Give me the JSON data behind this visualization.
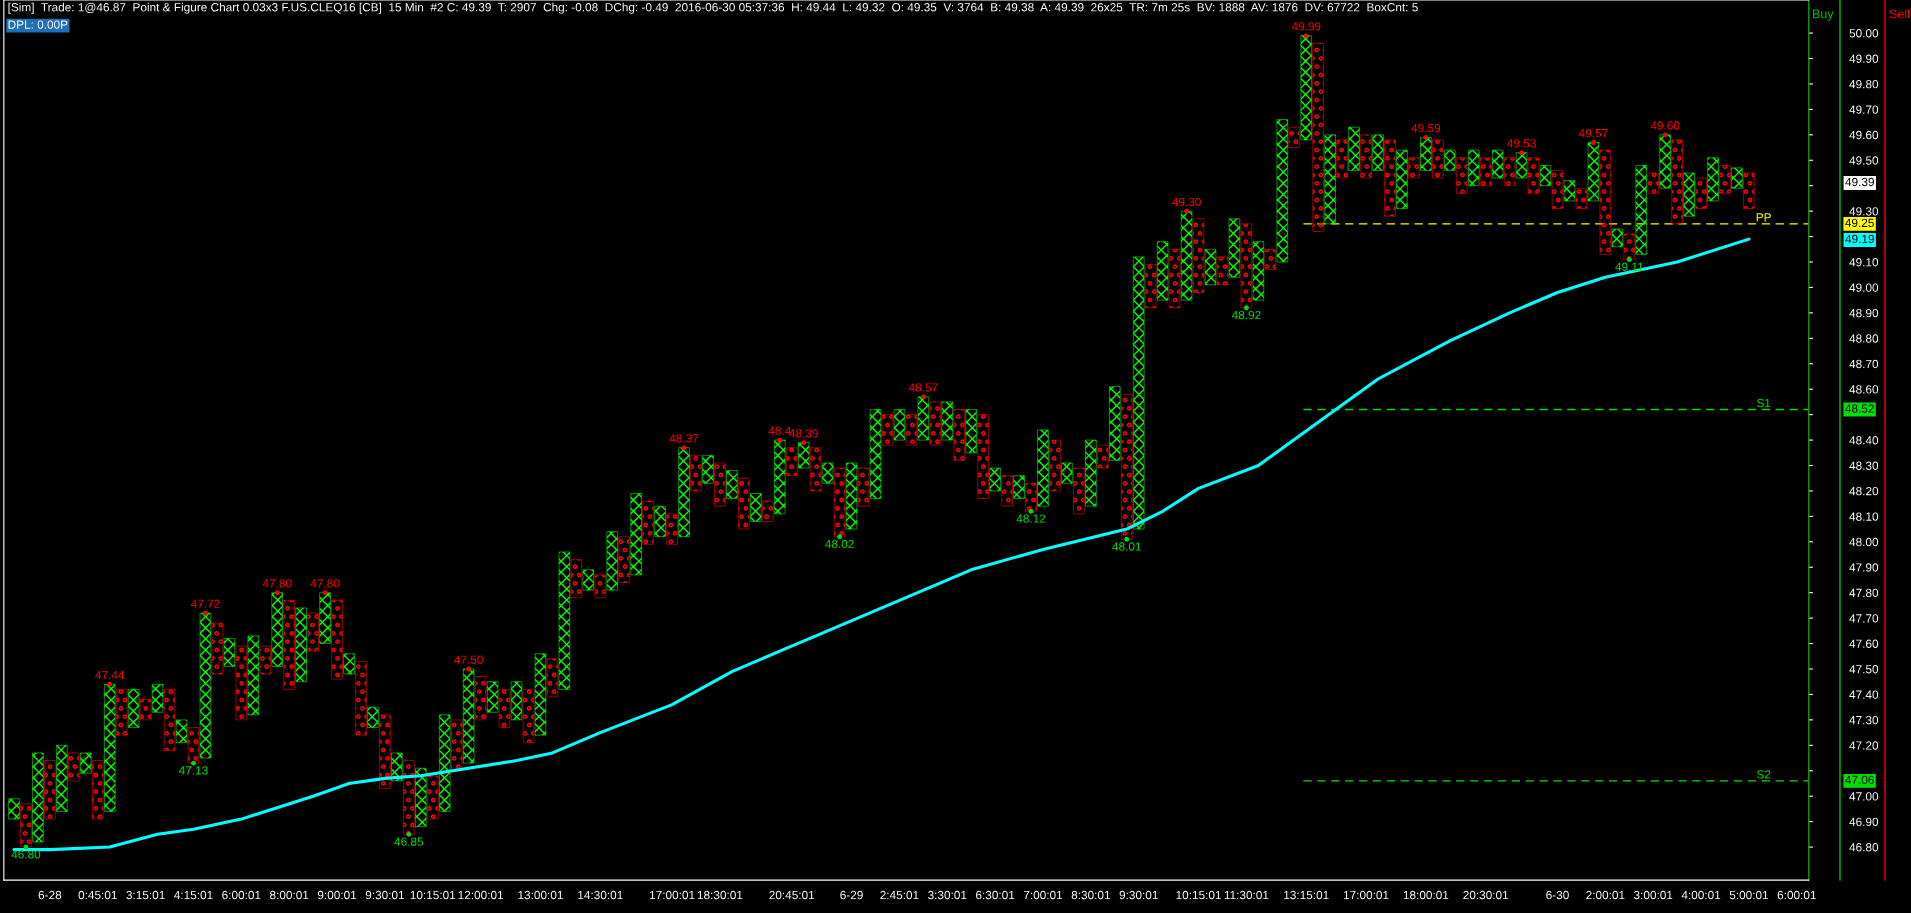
{
  "chart_data": {
    "type": "bar",
    "title": "[Sim]  Trade: 1@46.87  Point & Figure Chart 0.03x3 F.US.CLEQ16 [CB]  15 Min  #2 C: 49.39  T: 2907  Chg: -0.08  DChg: -0.49  2016-06-30 05:37:36  H: 49.44  L: 49.32  O: 49.35  V: 3764  B: 49.38  A: 49.39  26x25  TR: 7m 25s  BV: 1888  AV: 1876  DV: 67722  BoxCnt: 5",
    "subtitle": "DPL: 0.00P",
    "categories": [
      null,
      null,
      null,
      "6-28",
      null,
      null,
      null,
      "0:45:01",
      null,
      null,
      null,
      "3:15:01",
      null,
      null,
      null,
      "4:15:01",
      null,
      null,
      null,
      "6:00:01",
      null,
      null,
      null,
      "8:00:01",
      null,
      null,
      null,
      "9:00:01",
      null,
      null,
      null,
      "9:30:01",
      null,
      null,
      null,
      "10:15:01",
      null,
      null,
      null,
      "12:00:01",
      null,
      null,
      null,
      null,
      "13:00:01",
      null,
      null,
      null,
      null,
      "14:30:01",
      null,
      null,
      null,
      null,
      null,
      "17:00:01",
      null,
      null,
      null,
      "18:30:01",
      null,
      null,
      null,
      null,
      null,
      "20:45:01",
      null,
      null,
      null,
      null,
      "6-29",
      null,
      null,
      null,
      "2:45:01",
      null,
      null,
      null,
      "3:30:01",
      null,
      null,
      null,
      "6:30:01",
      null,
      null,
      null,
      "7:00:01",
      null,
      null,
      null,
      "8:30:01",
      null,
      null,
      null,
      "9:30:01",
      null,
      null,
      null,
      null,
      "10:15:01",
      null,
      null,
      null,
      "11:30:01",
      null,
      null,
      null,
      null,
      "13:15:01",
      null,
      null,
      null,
      null,
      "17:00:01",
      null,
      null,
      null,
      null,
      "18:00:01",
      null,
      null,
      null,
      null,
      "20:30:01",
      null,
      null,
      null,
      null,
      null,
      "6-30",
      null,
      null,
      null,
      "2:00:01",
      null,
      null,
      null,
      "3:00:01",
      null,
      null,
      null,
      "4:00:01",
      null,
      null,
      null,
      "5:00:01",
      null,
      null,
      null,
      "6:00:01"
    ],
    "series": [
      {
        "color": "#00ff00",
        "marker": "cross",
        "values": [
          0.08,
          null,
          0.35,
          null,
          0.26,
          null,
          0.08,
          null,
          0.5,
          null,
          0.15,
          null,
          0.11,
          null,
          0.09,
          null,
          0.57,
          null,
          0.11,
          null,
          0.31,
          null,
          0.29,
          null,
          0.29,
          null,
          0.2,
          null,
          0.08,
          null,
          0.08,
          null,
          0.11,
          null,
          0.23,
          null,
          0.38,
          null,
          0.37,
          null,
          0.12,
          null,
          0.15,
          null,
          0.32,
          null,
          0.54,
          null,
          0.08,
          null,
          0.23,
          null,
          0.32,
          null,
          0.12,
          null,
          0.35,
          null,
          0.11,
          null,
          0.11,
          null,
          0.11,
          null,
          0.29,
          null,
          0.1,
          null,
          0.08,
          null,
          0.26,
          null,
          0.35,
          null,
          0.12,
          null,
          0.17,
          null,
          0.15,
          null,
          0.17,
          null,
          0.09,
          null,
          0.09,
          null,
          0.3,
          null,
          0.08,
          null,
          0.26,
          null,
          0.29,
          null,
          1.07,
          null,
          0.23,
          null,
          0.35,
          null,
          0.14,
          null,
          0.23,
          null,
          0.23,
          null,
          0.56,
          null,
          0.41,
          null,
          0.35,
          null,
          0.17,
          null,
          0.14,
          null,
          0.23,
          null,
          0.13,
          null,
          0.08,
          null,
          0.14,
          null,
          0.11,
          null,
          0.1,
          null,
          0.08,
          null,
          0.08,
          null,
          0.23,
          null,
          0.07,
          null,
          0.35,
          null,
          0.21,
          null,
          0.17,
          null,
          0.17,
          null,
          0.08,
          null,
          null,
          null,
          null,
          null
        ],
        "base": [
          46.91,
          null,
          46.82,
          null,
          46.94,
          null,
          47.09,
          null,
          46.94,
          null,
          47.27,
          null,
          47.33,
          null,
          47.21,
          null,
          47.15,
          null,
          47.51,
          null,
          47.32,
          null,
          47.51,
          null,
          47.45,
          null,
          47.6,
          null,
          47.48,
          null,
          47.27,
          null,
          47.06,
          null,
          46.88,
          null,
          46.94,
          null,
          47.13,
          null,
          47.33,
          null,
          47.3,
          null,
          47.24,
          null,
          47.42,
          null,
          47.81,
          null,
          47.81,
          null,
          47.87,
          null,
          48.02,
          null,
          48.02,
          null,
          48.23,
          null,
          48.17,
          null,
          48.08,
          null,
          48.11,
          null,
          48.29,
          null,
          48.23,
          null,
          48.05,
          null,
          48.17,
          null,
          48.4,
          null,
          48.4,
          null,
          48.4,
          null,
          48.35,
          null,
          48.2,
          null,
          48.17,
          null,
          48.14,
          null,
          48.23,
          null,
          48.14,
          null,
          48.32,
          null,
          48.05,
          null,
          48.95,
          null,
          48.95,
          null,
          49.01,
          null,
          49.04,
          null,
          48.95,
          null,
          49.1,
          null,
          49.58,
          null,
          49.25,
          null,
          49.46,
          null,
          49.46,
          null,
          49.31,
          null,
          49.46,
          null,
          49.46,
          null,
          49.4,
          null,
          49.43,
          null,
          49.43,
          null,
          49.4,
          null,
          49.34,
          null,
          49.34,
          null,
          49.16,
          null,
          49.13,
          null,
          49.39,
          null,
          49.28,
          null,
          49.34,
          null,
          49.39,
          null,
          null,
          null,
          null,
          null
        ]
      },
      {
        "color": "#ff0000",
        "marker": "circle",
        "values": [
          null,
          0.17,
          null,
          0.23,
          null,
          0.11,
          null,
          0.23,
          null,
          0.18,
          null,
          0.08,
          null,
          0.24,
          null,
          0.14,
          null,
          0.2,
          null,
          0.29,
          null,
          0.11,
          null,
          0.35,
          null,
          0.15,
          null,
          0.31,
          null,
          0.29,
          null,
          0.29,
          null,
          0.29,
          null,
          0.17,
          null,
          0.2,
          null,
          0.17,
          null,
          0.15,
          null,
          0.21,
          null,
          0.15,
          null,
          0.15,
          null,
          0.09,
          null,
          0.18,
          null,
          0.17,
          null,
          0.12,
          null,
          0.14,
          null,
          0.17,
          null,
          0.2,
          null,
          0.08,
          null,
          0.11,
          null,
          0.17,
          null,
          0.27,
          null,
          0.15,
          null,
          0.12,
          null,
          0.12,
          null,
          0.17,
          null,
          0.2,
          null,
          0.33,
          null,
          0.12,
          null,
          0.11,
          null,
          0.2,
          null,
          0.18,
          null,
          0.09,
          null,
          0.57,
          null,
          0.17,
          null,
          0.23,
          null,
          0.29,
          null,
          0.11,
          null,
          0.33,
          null,
          0.08,
          null,
          0.08,
          null,
          0.74,
          null,
          0.15,
          null,
          0.17,
          null,
          0.3,
          null,
          0.08,
          null,
          0.15,
          null,
          0.14,
          null,
          0.11,
          null,
          0.11,
          null,
          0.14,
          null,
          0.15,
          null,
          0.08,
          null,
          0.41,
          null,
          0.1,
          null,
          0.08,
          null,
          0.33,
          null,
          0.12,
          null,
          0.11,
          null,
          0.14,
          null,
          null,
          null,
          null
        ],
        "base": [
          null,
          46.8,
          null,
          46.91,
          null,
          47.06,
          null,
          46.91,
          null,
          47.24,
          null,
          47.3,
          null,
          47.18,
          null,
          47.13,
          null,
          47.48,
          null,
          47.3,
          null,
          47.48,
          null,
          47.42,
          null,
          47.57,
          null,
          47.46,
          null,
          47.24,
          null,
          47.03,
          null,
          46.85,
          null,
          46.91,
          null,
          47.1,
          null,
          47.3,
          null,
          47.27,
          null,
          47.21,
          null,
          47.39,
          null,
          47.78,
          null,
          47.78,
          null,
          47.84,
          null,
          47.99,
          null,
          47.99,
          null,
          48.2,
          null,
          48.14,
          null,
          48.05,
          null,
          48.08,
          null,
          48.26,
          null,
          48.2,
          null,
          48.02,
          null,
          48.14,
          null,
          48.38,
          null,
          48.38,
          null,
          48.38,
          null,
          48.32,
          null,
          48.17,
          null,
          48.14,
          null,
          48.12,
          null,
          48.2,
          null,
          48.11,
          null,
          48.29,
          null,
          48.01,
          null,
          48.92,
          null,
          48.92,
          null,
          48.98,
          null,
          49.01,
          null,
          48.92,
          null,
          49.07,
          null,
          49.55,
          null,
          49.22,
          null,
          49.43,
          null,
          49.43,
          null,
          49.28,
          null,
          49.43,
          null,
          49.43,
          null,
          49.37,
          null,
          49.4,
          null,
          49.4,
          null,
          49.37,
          null,
          49.31,
          null,
          49.31,
          null,
          49.13,
          null,
          49.11,
          null,
          49.37,
          null,
          49.25,
          null,
          49.31,
          null,
          49.37,
          null,
          49.31,
          null,
          null,
          null,
          null
        ]
      },
      {
        "type": "line",
        "color": "#00ffff",
        "values": [
          46.79,
          null,
          null,
          46.79,
          null,
          null,
          null,
          null,
          46.8,
          null,
          null,
          null,
          46.85,
          null,
          null,
          46.87,
          null,
          null,
          null,
          46.91,
          null,
          46.94,
          null,
          null,
          null,
          47.0,
          null,
          null,
          47.05,
          null,
          null,
          47.07,
          null,
          null,
          47.08,
          null,
          null,
          null,
          null,
          null,
          null,
          null,
          47.14,
          null,
          null,
          47.17,
          null,
          null,
          null,
          47.25,
          null,
          null,
          null,
          null,
          null,
          47.36,
          null,
          null,
          null,
          null,
          47.49,
          null,
          null,
          null,
          47.57,
          null,
          null,
          null,
          47.65,
          null,
          null,
          null,
          null,
          null,
          47.77,
          null,
          null,
          null,
          null,
          null,
          47.89,
          null,
          null,
          null,
          null,
          null,
          47.97,
          null,
          null,
          null,
          null,
          null,
          null,
          48.05,
          null,
          null,
          48.12,
          null,
          null,
          48.21,
          null,
          null,
          null,
          null,
          48.3,
          null,
          null,
          null,
          null,
          48.47,
          null,
          null,
          null,
          null,
          48.64,
          null,
          null,
          null,
          null,
          null,
          48.79,
          null,
          null,
          null,
          null,
          48.9,
          null,
          null,
          null,
          48.98,
          null,
          null,
          null,
          49.04,
          null,
          null,
          null,
          null,
          null,
          49.1,
          null,
          null,
          null,
          null,
          null,
          49.19,
          null,
          null,
          null,
          null
        ]
      },
      {
        "type": "scatter",
        "color": "#ff0000",
        "marker": "circle",
        "values": [
          null,
          null,
          null,
          null,
          null,
          null,
          null,
          null,
          47.44,
          null,
          null,
          null,
          null,
          null,
          null,
          null,
          47.72,
          null,
          null,
          null,
          null,
          null,
          47.8,
          null,
          null,
          null,
          47.8,
          null,
          null,
          null,
          null,
          null,
          null,
          null,
          null,
          null,
          null,
          null,
          47.5,
          null,
          null,
          null,
          null,
          null,
          null,
          null,
          null,
          null,
          null,
          null,
          null,
          null,
          null,
          null,
          null,
          null,
          48.37,
          null,
          null,
          null,
          null,
          null,
          null,
          null,
          48.4,
          null,
          48.39,
          null,
          null,
          null,
          null,
          null,
          null,
          null,
          null,
          null,
          48.57,
          null,
          null,
          null,
          null,
          null,
          null,
          null,
          null,
          null,
          null,
          null,
          null,
          null,
          null,
          null,
          null,
          null,
          null,
          null,
          null,
          null,
          49.3,
          null,
          null,
          null,
          null,
          null,
          null,
          null,
          null,
          null,
          49.99,
          null,
          null,
          null,
          null,
          null,
          null,
          null,
          null,
          null,
          49.59,
          null,
          null,
          null,
          null,
          null,
          null,
          null,
          49.53,
          null,
          null,
          null,
          null,
          null,
          49.57,
          null,
          null,
          null,
          null,
          null,
          49.6,
          null,
          null,
          null,
          null,
          null,
          null,
          null,
          null,
          null,
          null,
          null
        ],
        "value_labels": [
          null,
          null,
          null,
          null,
          null,
          null,
          null,
          null,
          "47.44",
          null,
          null,
          null,
          null,
          null,
          null,
          null,
          "47.72",
          null,
          null,
          null,
          null,
          null,
          "47.80",
          null,
          null,
          null,
          "47.80",
          null,
          null,
          null,
          null,
          null,
          null,
          null,
          null,
          null,
          null,
          null,
          "47.50",
          null,
          null,
          null,
          null,
          null,
          null,
          null,
          null,
          null,
          null,
          null,
          null,
          null,
          null,
          null,
          null,
          null,
          "48.37",
          null,
          null,
          null,
          null,
          null,
          null,
          null,
          "48.4",
          null,
          "48.39",
          null,
          null,
          null,
          null,
          null,
          null,
          null,
          null,
          null,
          "48.57",
          null,
          null,
          null,
          null,
          null,
          null,
          null,
          null,
          null,
          null,
          null,
          null,
          null,
          null,
          null,
          null,
          null,
          null,
          null,
          null,
          null,
          "49.30",
          null,
          null,
          null,
          null,
          null,
          null,
          null,
          null,
          null,
          "49.99",
          null,
          null,
          null,
          null,
          null,
          null,
          null,
          null,
          null,
          "49.59",
          null,
          null,
          null,
          null,
          null,
          null,
          null,
          "49.53",
          null,
          null,
          null,
          null,
          null,
          "49.57",
          null,
          null,
          null,
          null,
          null,
          "49.60",
          null,
          null,
          null,
          null,
          null,
          null,
          null,
          null,
          null,
          null,
          null
        ]
      },
      {
        "type": "scatter",
        "color": "#00e000",
        "marker": "circle",
        "values": [
          null,
          46.8,
          null,
          null,
          null,
          null,
          null,
          null,
          null,
          null,
          null,
          null,
          null,
          null,
          null,
          47.13,
          null,
          null,
          null,
          null,
          null,
          null,
          null,
          null,
          null,
          null,
          null,
          null,
          null,
          null,
          null,
          null,
          null,
          46.85,
          null,
          null,
          null,
          null,
          null,
          null,
          null,
          null,
          null,
          null,
          null,
          null,
          null,
          null,
          null,
          null,
          null,
          null,
          null,
          null,
          null,
          null,
          null,
          null,
          null,
          null,
          null,
          null,
          null,
          null,
          null,
          null,
          null,
          null,
          null,
          48.02,
          null,
          null,
          null,
          null,
          null,
          null,
          null,
          null,
          null,
          null,
          null,
          null,
          null,
          null,
          null,
          48.12,
          null,
          null,
          null,
          null,
          null,
          null,
          null,
          48.01,
          null,
          null,
          null,
          null,
          null,
          null,
          null,
          null,
          null,
          48.92,
          null,
          null,
          null,
          null,
          null,
          null,
          null,
          null,
          null,
          null,
          null,
          null,
          null,
          null,
          null,
          null,
          null,
          null,
          null,
          null,
          null,
          null,
          null,
          null,
          null,
          null,
          null,
          null,
          null,
          null,
          null,
          49.11,
          null,
          null,
          null,
          null,
          null,
          null,
          null,
          null,
          null,
          null,
          null,
          null,
          null,
          null
        ],
        "value_labels": [
          null,
          "46.80",
          null,
          null,
          null,
          null,
          null,
          null,
          null,
          null,
          null,
          null,
          null,
          null,
          null,
          "47.13",
          null,
          null,
          null,
          null,
          null,
          null,
          null,
          null,
          null,
          null,
          null,
          null,
          null,
          null,
          null,
          null,
          null,
          "46.85",
          null,
          null,
          null,
          null,
          null,
          null,
          null,
          null,
          null,
          null,
          null,
          null,
          null,
          null,
          null,
          null,
          null,
          null,
          null,
          null,
          null,
          null,
          null,
          null,
          null,
          null,
          null,
          null,
          null,
          null,
          null,
          null,
          null,
          null,
          null,
          "48.02",
          null,
          null,
          null,
          null,
          null,
          null,
          null,
          null,
          null,
          null,
          null,
          null,
          null,
          null,
          null,
          "48.12",
          null,
          null,
          null,
          null,
          null,
          null,
          null,
          "48.01",
          null,
          null,
          null,
          null,
          null,
          null,
          null,
          null,
          null,
          "48.92",
          null,
          null,
          null,
          null,
          null,
          null,
          null,
          null,
          null,
          null,
          null,
          null,
          null,
          null,
          null,
          null,
          null,
          null,
          null,
          null,
          null,
          null,
          null,
          null,
          null,
          null,
          null,
          null,
          null,
          null,
          null,
          "49.11",
          null,
          null,
          null,
          null,
          null,
          null,
          null,
          null,
          null,
          null,
          null,
          null,
          null,
          null
        ]
      }
    ],
    "ylim": [
      46.67,
      50.13
    ],
    "yticks": [
      {
        "value": 46.8,
        "label": "46.80"
      },
      {
        "value": 46.9,
        "label": "46.90"
      },
      {
        "value": 47.0,
        "label": "47.00"
      },
      {
        "value": 47.1,
        "label": null
      },
      {
        "value": 47.2,
        "label": "47.20"
      },
      {
        "value": 47.3,
        "label": "47.30"
      },
      {
        "value": 47.4,
        "label": "47.40"
      },
      {
        "value": 47.5,
        "label": "47.50"
      },
      {
        "value": 47.6,
        "label": "47.60"
      },
      {
        "value": 47.7,
        "label": "47.70"
      },
      {
        "value": 47.8,
        "label": "47.80"
      },
      {
        "value": 47.9,
        "label": "47.90"
      },
      {
        "value": 48.0,
        "label": "48.00"
      },
      {
        "value": 48.1,
        "label": "48.10"
      },
      {
        "value": 48.2,
        "label": "48.20"
      },
      {
        "value": 48.3,
        "label": "48.30"
      },
      {
        "value": 48.4,
        "label": "48.40"
      },
      {
        "value": 48.5,
        "label": null
      },
      {
        "value": 48.6,
        "label": "48.60"
      },
      {
        "value": 48.7,
        "label": "48.70"
      },
      {
        "value": 48.8,
        "label": "48.80"
      },
      {
        "value": 48.9,
        "label": "48.90"
      },
      {
        "value": 49.0,
        "label": "49.00"
      },
      {
        "value": 49.1,
        "label": "49.10"
      },
      {
        "value": 49.2,
        "label": null
      },
      {
        "value": 49.3,
        "label": "49.30"
      },
      {
        "value": 49.4,
        "label": null
      },
      {
        "value": 49.5,
        "label": "49.50"
      },
      {
        "value": 49.6,
        "label": "49.60"
      },
      {
        "value": 49.7,
        "label": "49.70"
      },
      {
        "value": 49.8,
        "label": "49.80"
      },
      {
        "value": 49.9,
        "label": "49.90"
      },
      {
        "value": 50.0,
        "label": "50.00"
      }
    ],
    "ref_lines": [
      {
        "axis": "y",
        "value": 49.25,
        "label": "PP",
        "color": "#ffff00",
        "line_style": "dashed"
      },
      {
        "axis": "y",
        "value": 48.52,
        "label": "S1",
        "color": "#00e000",
        "line_style": "dashed"
      },
      {
        "axis": "y",
        "value": 47.06,
        "label": "S2",
        "color": "#00e000",
        "line_style": "dashed"
      }
    ],
    "annotations": [
      "49.25",
      "48.52",
      "47.06",
      "49.39",
      "49.19",
      "Buy",
      "Sell"
    ]
  }
}
